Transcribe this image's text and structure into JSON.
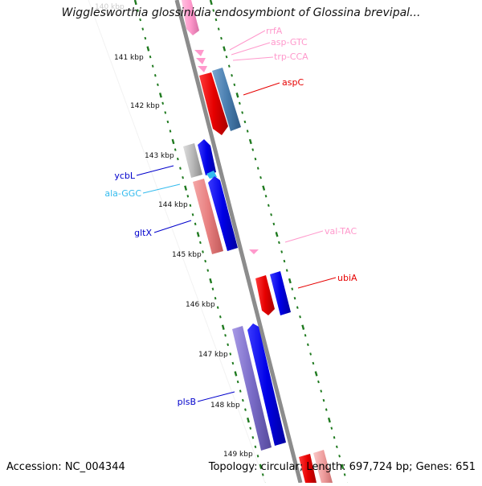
{
  "title": "Wigglesworthia glossinidia endosymbiont of Glossina brevipal...",
  "footer": {
    "accession": "Accession: NC_004344",
    "topology": "Topology: circular; Length: 697,724 bp; Genes: 651"
  },
  "colors": {
    "backbone": "#8c8c8c",
    "tick": "#1f7a1f",
    "red": "#e60000",
    "steelblue": "#4a7fb0",
    "blue": "#0000e6",
    "salmon": "#e88080",
    "grey": "#b8b8b8",
    "purple": "#7a6cc8",
    "pink": "#ff99cc",
    "cyan": "#33bbee",
    "lightred": "#f0a0a0"
  },
  "kbp_labels": [
    "140 kbp",
    "141 kbp",
    "142 kbp",
    "143 kbp",
    "144 kbp",
    "145 kbp",
    "146 kbp",
    "147 kbp",
    "148 kbp",
    "149 kbp"
  ],
  "features": [
    {
      "name": "rrfA",
      "color": "#ff99cc"
    },
    {
      "name": "asp-GTC",
      "color": "#ff99cc"
    },
    {
      "name": "trp-CCA",
      "color": "#ff99cc"
    },
    {
      "name": "aspC",
      "color": "#e60000"
    },
    {
      "name": "ycbL",
      "color": "#0000cc"
    },
    {
      "name": "ala-GGC",
      "color": "#33bbee"
    },
    {
      "name": "gltX",
      "color": "#0000cc"
    },
    {
      "name": "val-TAC",
      "color": "#ff99cc"
    },
    {
      "name": "ubiA",
      "color": "#e60000"
    },
    {
      "name": "plsB",
      "color": "#0000cc"
    }
  ]
}
